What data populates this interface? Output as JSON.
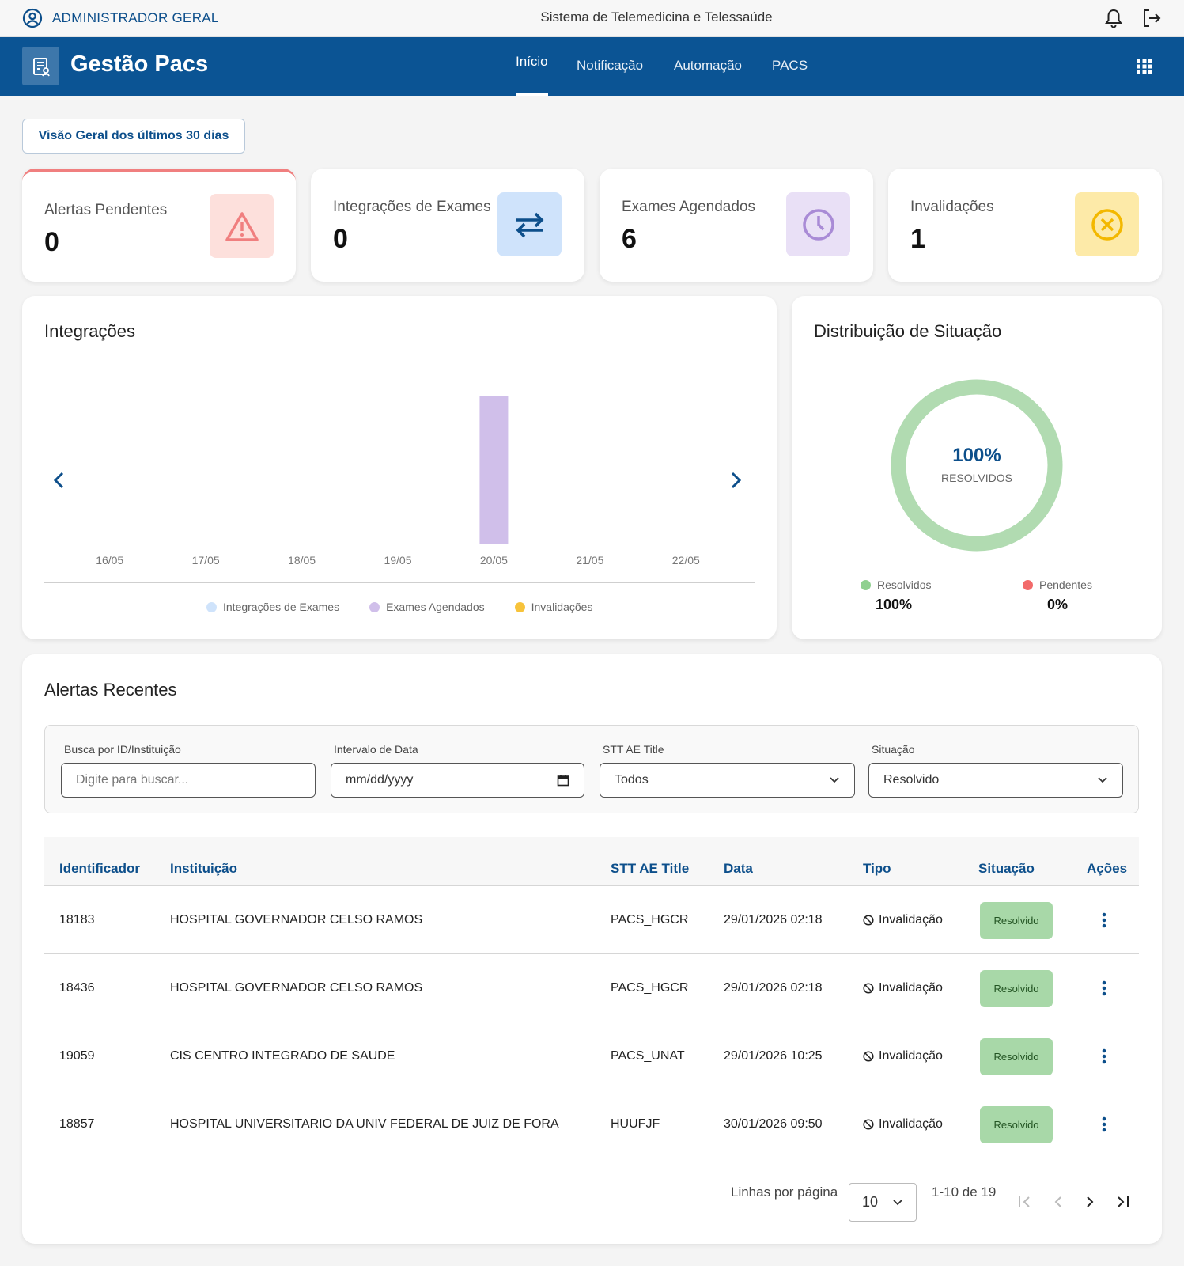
{
  "topbar": {
    "user_label": "ADMINISTRADOR GERAL",
    "system_title": "Sistema de Telemedicina e Telessaúde"
  },
  "navbar": {
    "brand": "Gestão Pacs",
    "items": [
      "Início",
      "Notificação",
      "Automação",
      "PACS"
    ],
    "active_index": 0
  },
  "overview_button": "Visão Geral dos últimos 30 dias",
  "stats": [
    {
      "label": "Alertas Pendentes",
      "value": "0",
      "icon": "warning-icon",
      "color": "#f07f7f",
      "bg": "#fde0dc"
    },
    {
      "label": "Integrações de Exames",
      "value": "0",
      "icon": "swap-arrows-icon",
      "color": "#0d4f8b",
      "bg": "#cfe3fb"
    },
    {
      "label": "Exames Agendados",
      "value": "6",
      "icon": "clock-icon",
      "color": "#a98bd6",
      "bg": "#e9e0f6"
    },
    {
      "label": "Invalidações",
      "value": "1",
      "icon": "cancel-circle-icon",
      "color": "#f3b800",
      "bg": "#fdeaa8"
    }
  ],
  "integrations": {
    "title": "Integrações"
  },
  "chart_data": {
    "type": "bar",
    "title": "Integrações",
    "categories": [
      "16/05",
      "17/05",
      "18/05",
      "19/05",
      "20/05",
      "21/05",
      "22/05"
    ],
    "series": [
      {
        "name": "Integrações de Exames",
        "color": "#cfe3fb",
        "values": [
          0,
          0,
          0,
          0,
          0,
          0,
          0
        ]
      },
      {
        "name": "Exames Agendados",
        "color": "#d0bfea",
        "values": [
          0,
          0,
          0,
          0,
          6,
          0,
          0
        ]
      },
      {
        "name": "Invalidações",
        "color": "#f7c33b",
        "values": [
          0,
          0,
          0,
          0,
          0,
          0,
          0
        ]
      }
    ],
    "ylim": [
      0,
      6
    ],
    "legend": "bottom",
    "grid": false
  },
  "distribution": {
    "title": "Distribuição de Situação",
    "center_value": "100%",
    "center_label": "RESOLVIDOS",
    "resolved_fraction": 1.0,
    "legend": [
      {
        "label": "Resolvidos",
        "value": "100%",
        "color": "#8fd08f"
      },
      {
        "label": "Pendentes",
        "value": "0%",
        "color": "#f26a6a"
      }
    ],
    "ring_color": "#b1dbb1"
  },
  "alerts": {
    "title": "Alertas Recentes",
    "filters": {
      "search_label": "Busca por ID/Instituição",
      "search_placeholder": "Digite para buscar...",
      "date_label": "Intervalo de Data",
      "date_value": "mm/dd/yyyy",
      "ae_label": "STT AE Title",
      "ae_value": "Todos",
      "status_label": "Situação",
      "status_value": "Resolvido"
    },
    "columns": [
      "Identificador",
      "Instituição",
      "STT AE Title",
      "Data",
      "Tipo",
      "Situação",
      "Ações"
    ],
    "rows": [
      {
        "id": "18183",
        "inst": "HOSPITAL GOVERNADOR CELSO RAMOS",
        "ae": "PACS_HGCR",
        "date": "29/01/2026 02:18",
        "type": "Invalidação",
        "status": "Resolvido"
      },
      {
        "id": "18436",
        "inst": "HOSPITAL GOVERNADOR CELSO RAMOS",
        "ae": "PACS_HGCR",
        "date": "29/01/2026 02:18",
        "type": "Invalidação",
        "status": "Resolvido"
      },
      {
        "id": "19059",
        "inst": "CIS CENTRO INTEGRADO DE SAUDE",
        "ae": "PACS_UNAT",
        "date": "29/01/2026 10:25",
        "type": "Invalidação",
        "status": "Resolvido"
      },
      {
        "id": "18857",
        "inst": "HOSPITAL UNIVERSITARIO DA UNIV FEDERAL DE JUIZ DE FORA",
        "ae": "HUUFJF",
        "date": "30/01/2026 09:50",
        "type": "Invalidação",
        "status": "Resolvido"
      }
    ],
    "pagination": {
      "rows_label": "Linhas por página",
      "rows_value": "10",
      "range": "1-10 de 19"
    }
  }
}
